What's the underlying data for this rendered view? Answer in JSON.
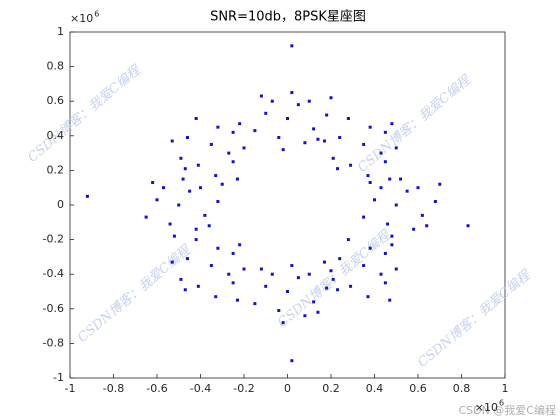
{
  "chart_data": {
    "type": "scatter",
    "title": "SNR=10db，8PSK星座图",
    "color": "#1212c8",
    "grid": false,
    "xlim": [
      -1,
      1
    ],
    "ylim": [
      -1,
      1
    ],
    "xticks": [
      -1,
      -0.8,
      -0.6,
      -0.4,
      -0.2,
      0,
      0.2,
      0.4,
      0.6,
      0.8,
      1
    ],
    "yticks": [
      -1,
      -0.8,
      -0.6,
      -0.4,
      -0.2,
      0,
      0.2,
      0.4,
      0.6,
      0.8,
      1
    ],
    "x_exponent": {
      "base": "×10",
      "power": "6"
    },
    "y_exponent": {
      "base": "×10",
      "power": "6"
    },
    "x": [
      0.55,
      0.4,
      0.62,
      0.46,
      0.52,
      0.68,
      0.35,
      0.58,
      0.43,
      0.5,
      0.6,
      0.38,
      0.64,
      0.48,
      0.7,
      0.43,
      0.38,
      0.29,
      0.24,
      0.5,
      0.37,
      0.28,
      0.21,
      0.45,
      0.35,
      0.45,
      0.48,
      0.23,
      0.17,
      0.47,
      0.05,
      -0.1,
      0.12,
      -0.04,
      0.02,
      0.18,
      -0.15,
      0.08,
      -0.07,
      0,
      0.1,
      -0.12,
      0.14,
      -0.02,
      0.2,
      -0.27,
      -0.32,
      -0.41,
      -0.46,
      -0.2,
      -0.33,
      -0.42,
      -0.49,
      -0.25,
      -0.35,
      -0.25,
      -0.22,
      -0.47,
      -0.53,
      -0.23,
      -0.45,
      -0.6,
      -0.38,
      -0.54,
      -0.48,
      -0.32,
      -0.65,
      -0.42,
      -0.57,
      -0.5,
      -0.4,
      -0.62,
      -0.36,
      -0.52,
      -0.3,
      -0.27,
      -0.32,
      -0.41,
      -0.46,
      -0.2,
      -0.33,
      -0.42,
      -0.49,
      -0.25,
      -0.35,
      -0.25,
      -0.22,
      -0.47,
      -0.53,
      -0.23,
      0.05,
      -0.1,
      0.12,
      -0.04,
      0.02,
      0.18,
      -0.15,
      0.08,
      -0.07,
      0,
      0.1,
      -0.12,
      0.14,
      -0.02,
      0.2,
      0.43,
      0.38,
      0.29,
      0.24,
      0.5,
      0.37,
      0.28,
      0.21,
      0.45,
      0.35,
      0.45,
      0.48,
      0.23,
      0.17,
      0.47,
      -0.92,
      0.83,
      0.02,
      0.02
    ],
    "values": [
      0.08,
      0.03,
      -0.06,
      -0.11,
      0.15,
      0.02,
      -0.07,
      -0.14,
      0.1,
      0,
      0.1,
      0.13,
      -0.12,
      -0.18,
      0.12,
      0.3,
      0.45,
      0.23,
      0.39,
      0.33,
      0.17,
      0.5,
      0.27,
      0.42,
      0.35,
      0.25,
      0.47,
      0.21,
      0.37,
      0.15,
      0.58,
      0.53,
      0.44,
      0.39,
      0.65,
      0.52,
      0.43,
      0.36,
      0.6,
      0.5,
      0.6,
      0.63,
      0.38,
      0.32,
      0.62,
      0.3,
      0.45,
      0.23,
      0.39,
      0.33,
      0.17,
      0.5,
      0.27,
      0.42,
      0.35,
      0.25,
      0.47,
      0.21,
      0.37,
      0.15,
      0.08,
      0.03,
      -0.06,
      -0.11,
      0.15,
      0.02,
      -0.07,
      -0.14,
      0.1,
      0,
      0.1,
      0.13,
      -0.12,
      -0.18,
      0.12,
      -0.4,
      -0.25,
      -0.47,
      -0.31,
      -0.37,
      -0.53,
      -0.2,
      -0.43,
      -0.28,
      -0.35,
      -0.45,
      -0.23,
      -0.49,
      -0.33,
      -0.55,
      -0.42,
      -0.47,
      -0.56,
      -0.61,
      -0.35,
      -0.48,
      -0.57,
      -0.64,
      -0.4,
      -0.5,
      -0.4,
      -0.37,
      -0.62,
      -0.68,
      -0.38,
      -0.4,
      -0.25,
      -0.47,
      -0.31,
      -0.37,
      -0.53,
      -0.2,
      -0.43,
      -0.28,
      -0.35,
      -0.45,
      -0.23,
      -0.49,
      -0.33,
      -0.55,
      0.05,
      -0.12,
      0.92,
      -0.9
    ]
  },
  "watermark": "CSDN博客：我爱C编程",
  "footer_watermark": "CSDN @我爱C编程"
}
